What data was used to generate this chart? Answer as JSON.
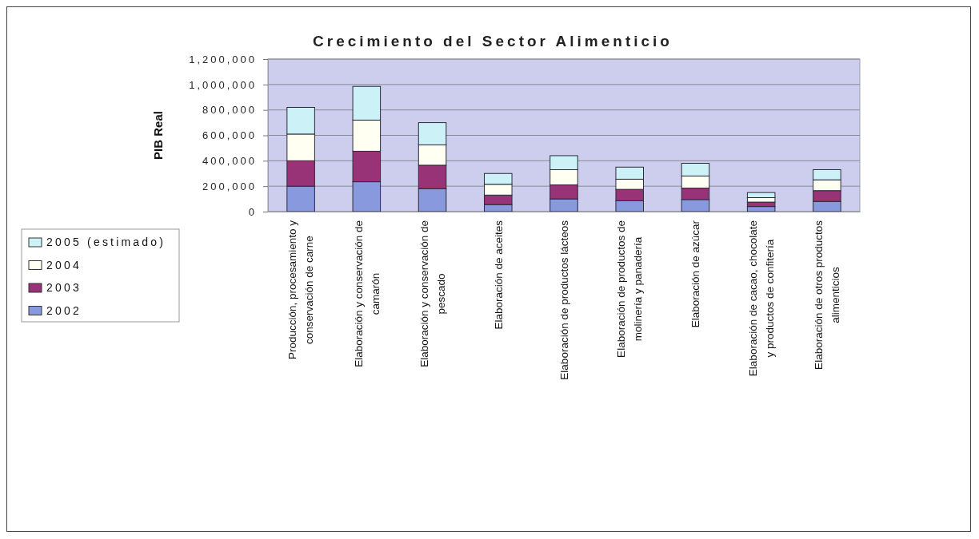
{
  "chart_data": {
    "type": "bar",
    "title": "Crecimiento del Sector Alimenticio",
    "ylabel": "PIB Real",
    "categories": [
      "Producción, procesamiento y conservación de carne",
      "Elaboración y conservación de camarón",
      "Elaboración y conservación de pescado",
      "Elaboración de aceites",
      "Elaboración de productos lácteos",
      "Elaboración de productos de molinería y panadería",
      "Elaboración de azúcar",
      "Elaboración de cacao, chocolate y productos de confitería",
      "Elaboración de otros productos alimenticios"
    ],
    "stacked": true,
    "series": [
      {
        "name": "2002",
        "color": "#8899dd",
        "values": [
          200000,
          235000,
          180000,
          55000,
          100000,
          85000,
          95000,
          40000,
          80000
        ]
      },
      {
        "name": "2003",
        "color": "#993377",
        "values": [
          200000,
          240000,
          185000,
          75000,
          110000,
          90000,
          90000,
          35000,
          85000
        ]
      },
      {
        "name": "2004",
        "color": "#fffff2",
        "values": [
          210000,
          245000,
          160000,
          85000,
          120000,
          80000,
          95000,
          35000,
          85000
        ]
      },
      {
        "name": "2005 (estimado)",
        "color": "#ccf2f8",
        "values": [
          210000,
          265000,
          175000,
          85000,
          110000,
          95000,
          100000,
          40000,
          80000
        ]
      }
    ],
    "ylim": [
      0,
      1200000
    ],
    "yticks": [
      0,
      {
        "value": 200000,
        "label": "200,000"
      },
      {
        "value": 400000,
        "label": "400,000"
      },
      {
        "value": 600000,
        "label": "600,000"
      },
      {
        "value": 800000,
        "label": "800,000"
      },
      {
        "value": 1000000,
        "label": "1,000,000"
      },
      {
        "value": 1200000,
        "label": "1,200,000"
      }
    ],
    "grid": "y",
    "legend": "left"
  }
}
